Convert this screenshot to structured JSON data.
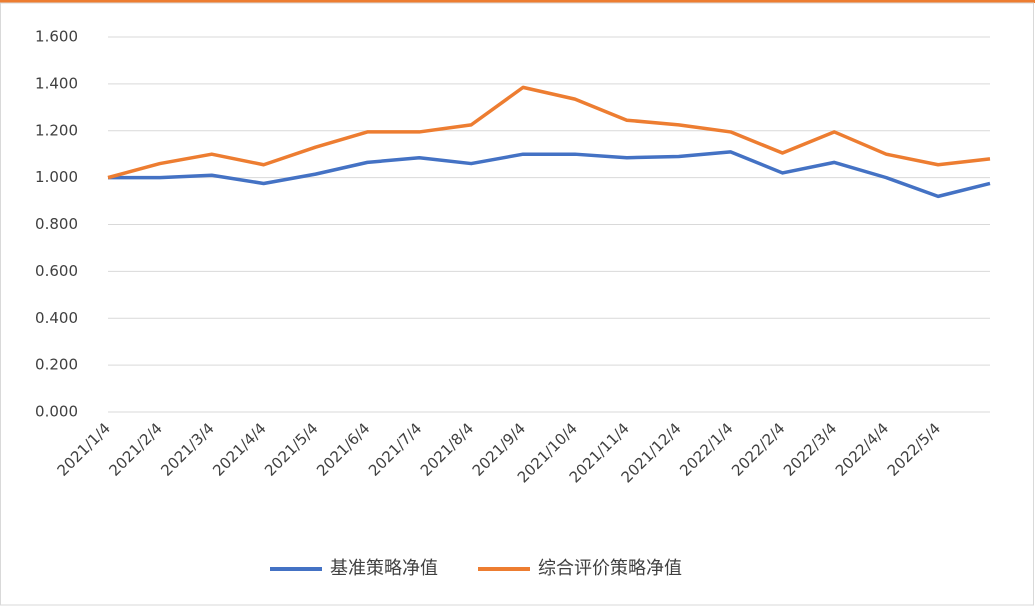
{
  "chart_data": {
    "type": "line",
    "categories": [
      "2021/1/4",
      "2021/2/4",
      "2021/3/4",
      "2021/4/4",
      "2021/5/4",
      "2021/6/4",
      "2021/7/4",
      "2021/8/4",
      "2021/9/4",
      "2021/10/4",
      "2021/11/4",
      "2021/12/4",
      "2022/1/4",
      "2022/2/4",
      "2022/3/4",
      "2022/4/4",
      "2022/5/4",
      null
    ],
    "series": [
      {
        "name": "基准策略净值",
        "color": "#4472c4",
        "values": [
          1.0,
          1.0,
          1.01,
          0.975,
          1.015,
          1.065,
          1.085,
          1.06,
          1.1,
          1.1,
          1.085,
          1.09,
          1.11,
          1.02,
          1.065,
          1.0,
          0.92,
          0.975
        ]
      },
      {
        "name": "综合评价策略净值",
        "color": "#ed7d31",
        "values": [
          1.0,
          1.06,
          1.1,
          1.055,
          1.13,
          1.195,
          1.195,
          1.225,
          1.385,
          1.335,
          1.245,
          1.225,
          1.195,
          1.105,
          1.195,
          1.1,
          1.055,
          1.08
        ]
      }
    ],
    "ylim": [
      0,
      1.6
    ],
    "yticks": [
      {
        "value": 0,
        "label": "0.000"
      },
      {
        "value": 0.2,
        "label": "0.200"
      },
      {
        "value": 0.4,
        "label": "0.400"
      },
      {
        "value": 0.6,
        "label": "0.600"
      },
      {
        "value": 0.8,
        "label": "0.800"
      },
      {
        "value": 1,
        "label": "1.000"
      },
      {
        "value": 1.2,
        "label": "1.200"
      },
      {
        "value": 1.4,
        "label": "1.400"
      },
      {
        "value": 1.6,
        "label": "1.600"
      }
    ],
    "grid": true,
    "legend": "bottom"
  }
}
